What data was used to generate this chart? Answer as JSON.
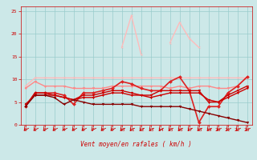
{
  "bg_color": "#cce8e8",
  "grid_color": "#99cccc",
  "text_color": "#cc0000",
  "xlabel": "Vent moyen/en rafales ( km/h )",
  "x_ticks": [
    0,
    1,
    2,
    3,
    4,
    5,
    6,
    7,
    8,
    9,
    10,
    11,
    12,
    13,
    14,
    15,
    16,
    17,
    18,
    19,
    20,
    21,
    22,
    23
  ],
  "ylim": [
    0,
    26
  ],
  "yticks": [
    0,
    5,
    10,
    15,
    20,
    25
  ],
  "series": [
    {
      "color": "#ffbbbb",
      "linewidth": 1.0,
      "marker": "x",
      "markersize": 2,
      "y": [
        8.5,
        10.3,
        10.3,
        10.3,
        10.3,
        10.3,
        10.3,
        10.3,
        10.3,
        10.3,
        10.3,
        10.3,
        10.3,
        10.3,
        10.3,
        10.3,
        10.3,
        10.3,
        10.3,
        10.3,
        10.3,
        10.3,
        10.3,
        10.3
      ]
    },
    {
      "color": "#ffbbbb",
      "linewidth": 1.0,
      "marker": "x",
      "markersize": 2,
      "y": [
        null,
        null,
        null,
        null,
        null,
        null,
        null,
        null,
        null,
        null,
        17.0,
        24.0,
        15.5,
        null,
        null,
        18.0,
        22.5,
        19.0,
        17.0,
        null,
        null,
        null,
        null,
        null
      ]
    },
    {
      "color": "#ff8888",
      "linewidth": 1.0,
      "marker": "v",
      "markersize": 2,
      "y": [
        8.0,
        9.5,
        8.5,
        8.5,
        8.5,
        8.0,
        8.0,
        8.0,
        8.0,
        8.5,
        8.5,
        8.5,
        8.5,
        8.5,
        8.5,
        8.0,
        8.5,
        8.0,
        8.5,
        8.5,
        8.0,
        8.0,
        8.5,
        10.5
      ]
    },
    {
      "color": "#dd2222",
      "linewidth": 1.2,
      "marker": "D",
      "markersize": 2,
      "y": [
        4.0,
        7.0,
        7.0,
        7.0,
        6.5,
        4.5,
        7.0,
        7.0,
        7.5,
        8.0,
        9.5,
        9.0,
        8.0,
        7.5,
        7.5,
        9.5,
        10.5,
        7.5,
        0.5,
        4.0,
        4.0,
        7.0,
        8.5,
        10.5
      ]
    },
    {
      "color": "#cc0000",
      "linewidth": 1.0,
      "marker": "v",
      "markersize": 2,
      "y": [
        4.0,
        7.0,
        7.0,
        6.5,
        6.0,
        5.5,
        6.5,
        6.5,
        7.0,
        7.5,
        7.5,
        7.0,
        6.5,
        6.5,
        7.5,
        7.5,
        7.5,
        7.5,
        7.5,
        5.0,
        5.0,
        6.5,
        7.5,
        8.5
      ]
    },
    {
      "color": "#cc0000",
      "linewidth": 1.0,
      "marker": "v",
      "markersize": 2,
      "y": [
        4.5,
        6.5,
        6.5,
        6.5,
        6.0,
        5.5,
        6.0,
        6.0,
        6.5,
        7.0,
        7.0,
        6.5,
        6.5,
        6.0,
        6.5,
        7.0,
        7.0,
        7.0,
        7.0,
        5.5,
        5.0,
        6.0,
        7.0,
        8.0
      ]
    },
    {
      "color": "#880000",
      "linewidth": 1.0,
      "marker": "v",
      "markersize": 2,
      "y": [
        4.0,
        6.5,
        6.5,
        6.0,
        4.5,
        5.5,
        5.0,
        4.5,
        4.5,
        4.5,
        4.5,
        4.5,
        4.0,
        4.0,
        4.0,
        4.0,
        4.0,
        3.5,
        3.0,
        2.5,
        2.0,
        1.5,
        1.0,
        0.5
      ]
    }
  ],
  "arrow_color": "#cc0000"
}
